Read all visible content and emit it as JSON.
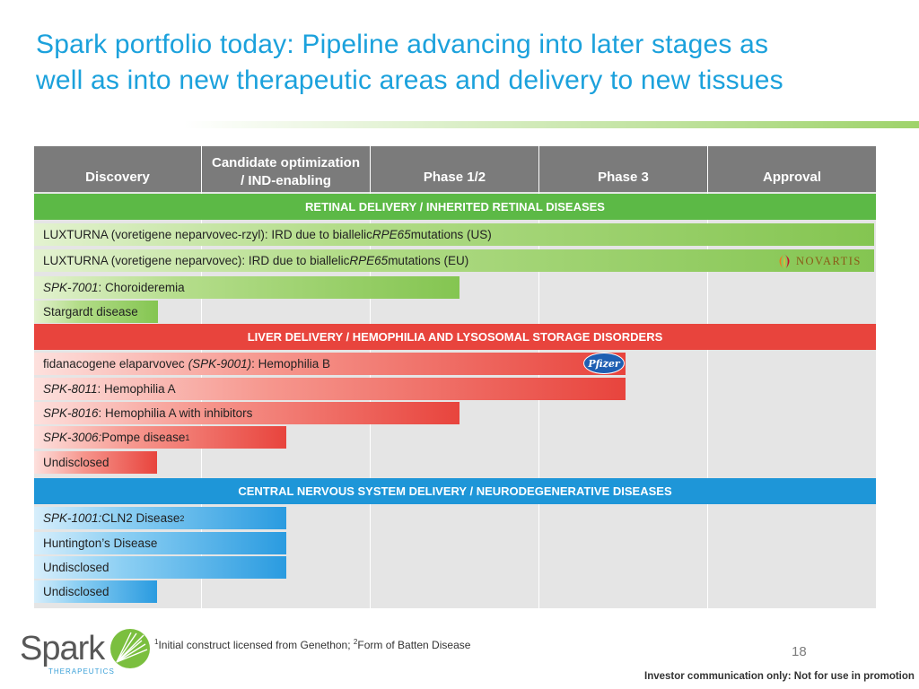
{
  "title_line1": "Spark portfolio today: Pipeline advancing into later stages as",
  "title_line2": "well as into new therapeutic areas and delivery to new tissues",
  "columns": {
    "discovery": "Discovery",
    "candidate_line1": "Candidate optimization",
    "candidate_line2": "/ IND-enabling",
    "phase12": "Phase 1/2",
    "phase3": "Phase 3",
    "approval": "Approval"
  },
  "sections": {
    "retinal": "RETINAL DELIVERY / INHERITED RETINAL DISEASES",
    "liver": "LIVER DELIVERY / HEMOPHILIA AND LYSOSOMAL STORAGE DISORDERS",
    "cns": "CENTRAL NERVOUS SYSTEM DELIVERY / NEURODEGENERATIVE DISEASES"
  },
  "programs": {
    "r1_prefix": "LUXTURNA (voretigene neparvovec-rzyl): IRD due to biallelic ",
    "r1_gene": "RPE65",
    "r1_suffix": " mutations (US)",
    "r2_prefix": "LUXTURNA (voretigene neparvovec): IRD due to biallelic ",
    "r2_gene": "RPE65",
    "r2_suffix": " mutations (EU)",
    "r3_code": "SPK-7001",
    "r3_text": ": Choroideremia",
    "r4_text": "Stargardt disease",
    "l1_prefix": "fidanacogene elaparvovec ",
    "l1_code": "(SPK-9001)",
    "l1_suffix": ": Hemophilia B",
    "l2_code": "SPK-8011",
    "l2_text": ": Hemophilia A",
    "l3_code": "SPK-8016",
    "l3_text": ": Hemophilia A with inhibitors",
    "l4_code": "SPK-3006:",
    "l4_text": " Pompe disease",
    "l4_sup": "1",
    "l5_text": "Undisclosed",
    "c1_code": "SPK-1001:",
    "c1_text": " CLN2 Disease",
    "c1_sup": "2",
    "c2_text": "Huntington’s Disease",
    "c3_text": "Undisclosed",
    "c4_text": "Undisclosed"
  },
  "partners": {
    "novartis": "NOVARTIS",
    "pfizer": "Pfizer"
  },
  "footnote": {
    "sup1": "1",
    "text1": "Initial construct licensed from Genethon; ",
    "sup2": "2",
    "text2": "Form of Batten Disease"
  },
  "page_number": "18",
  "disclaimer": "Investor communication only: Not for use in promotion",
  "logo": {
    "name": "Spark",
    "tagline": "THERAPEUTICS"
  },
  "colors": {
    "title": "#1ba1dc",
    "retinal": "#5cb946",
    "liver": "#e8443d",
    "cns": "#1e96d8",
    "header": "#7b7b7b"
  }
}
